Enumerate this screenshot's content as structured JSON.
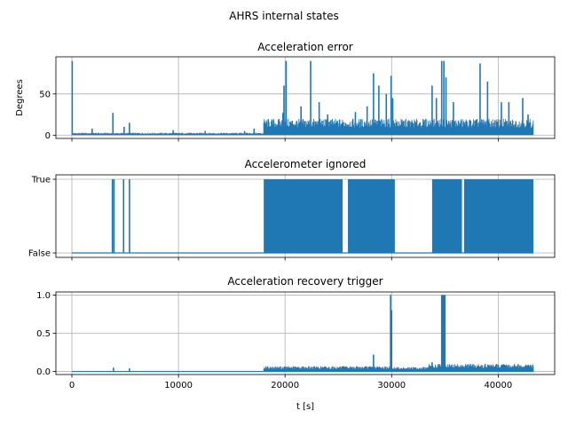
{
  "chart_data": {
    "type": "line",
    "title": "AHRS internal states",
    "xlabel": "t [s]",
    "xlim": [
      -1500,
      45300
    ],
    "xticks": [
      0,
      10000,
      20000,
      30000,
      40000
    ],
    "xtick_labels": [
      "0",
      "10000",
      "20000",
      "30000",
      "40000"
    ],
    "grid": true,
    "series_color": "#1f77b4",
    "panels": [
      {
        "title": "Acceleration error",
        "ylabel": "Degrees",
        "ylim": [
          -4,
          95
        ],
        "yticks": [
          0,
          50
        ],
        "ytick_labels": [
          "0",
          "50"
        ],
        "baseline": 1,
        "segments": [
          {
            "x": [
              0,
              18000
            ],
            "low": 0,
            "high": 3
          },
          {
            "x": [
              18000,
              43300
            ],
            "low": 0,
            "high": 20
          }
        ],
        "spikes": [
          {
            "x": 30,
            "y": 90
          },
          {
            "x": 3850,
            "y": 27
          },
          {
            "x": 4900,
            "y": 10
          },
          {
            "x": 5400,
            "y": 15
          },
          {
            "x": 1900,
            "y": 8
          },
          {
            "x": 9500,
            "y": 6
          },
          {
            "x": 12500,
            "y": 5
          },
          {
            "x": 16200,
            "y": 5
          },
          {
            "x": 17100,
            "y": 8
          },
          {
            "x": 19800,
            "y": 27
          },
          {
            "x": 19900,
            "y": 60
          },
          {
            "x": 20100,
            "y": 90
          },
          {
            "x": 21500,
            "y": 35
          },
          {
            "x": 22400,
            "y": 90
          },
          {
            "x": 23200,
            "y": 40
          },
          {
            "x": 24000,
            "y": 25
          },
          {
            "x": 26600,
            "y": 28
          },
          {
            "x": 27700,
            "y": 35
          },
          {
            "x": 28300,
            "y": 75
          },
          {
            "x": 28800,
            "y": 60
          },
          {
            "x": 29500,
            "y": 50
          },
          {
            "x": 29950,
            "y": 72
          },
          {
            "x": 30100,
            "y": 45
          },
          {
            "x": 32700,
            "y": 10
          },
          {
            "x": 33800,
            "y": 60
          },
          {
            "x": 34200,
            "y": 45
          },
          {
            "x": 34700,
            "y": 90
          },
          {
            "x": 34900,
            "y": 90
          },
          {
            "x": 35100,
            "y": 70
          },
          {
            "x": 35800,
            "y": 40
          },
          {
            "x": 38300,
            "y": 87
          },
          {
            "x": 39000,
            "y": 65
          },
          {
            "x": 40300,
            "y": 40
          },
          {
            "x": 41000,
            "y": 40
          },
          {
            "x": 42300,
            "y": 45
          },
          {
            "x": 42800,
            "y": 25
          }
        ]
      },
      {
        "title": "Accelerometer ignored",
        "ylabel": "",
        "ylim": [
          -0.06,
          1.06
        ],
        "yticks": [
          0,
          1
        ],
        "ytick_labels": [
          "False",
          "True"
        ],
        "baseline": 0,
        "blocks": [
          [
            18000,
            25400
          ],
          [
            25900,
            30300
          ],
          [
            33800,
            36600
          ],
          [
            36800,
            43300
          ]
        ],
        "spikes": [
          {
            "x": 3800,
            "y": 1
          },
          {
            "x": 3950,
            "y": 1
          },
          {
            "x": 4850,
            "y": 1
          },
          {
            "x": 5400,
            "y": 1
          }
        ]
      },
      {
        "title": "Acceleration recovery trigger",
        "ylabel": "",
        "ylim": [
          -0.04,
          1.04
        ],
        "yticks": [
          0,
          0.5,
          1
        ],
        "ytick_labels": [
          "0.0",
          "0.5",
          "1.0"
        ],
        "baseline": 0,
        "segments": [
          {
            "x": [
              18000,
              30000
            ],
            "low": 0,
            "high": 0.07
          },
          {
            "x": [
              30000,
              33500
            ],
            "low": 0,
            "high": 0.06
          },
          {
            "x": [
              33500,
              43300
            ],
            "low": 0,
            "high": 0.1
          }
        ],
        "spikes": [
          {
            "x": 3900,
            "y": 0.05
          },
          {
            "x": 5400,
            "y": 0.04
          },
          {
            "x": 28300,
            "y": 0.22
          },
          {
            "x": 29900,
            "y": 1.0
          },
          {
            "x": 30000,
            "y": 0.8
          },
          {
            "x": 33800,
            "y": 0.12
          },
          {
            "x": 34700,
            "y": 1.0
          },
          {
            "x": 34800,
            "y": 1.0
          },
          {
            "x": 34900,
            "y": 1.0
          },
          {
            "x": 35000,
            "y": 1.0
          }
        ]
      }
    ]
  }
}
